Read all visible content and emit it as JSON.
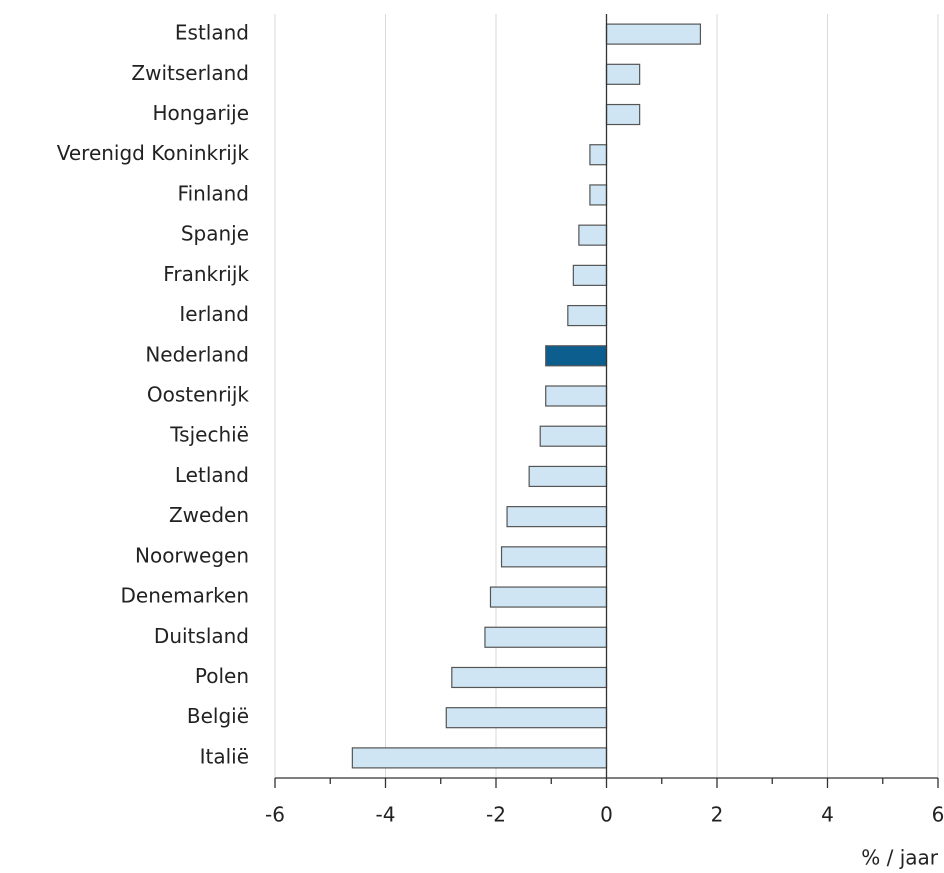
{
  "chart_data": {
    "type": "barh",
    "categories": [
      "Estland",
      "Zwitserland",
      "Hongarije",
      "Verenigd Koninkrijk",
      "Finland",
      "Spanje",
      "Frankrijk",
      "Ierland",
      "Nederland",
      "Oostenrijk",
      "Tsjechië",
      "Letland",
      "Zweden",
      "Noorwegen",
      "Denemarken",
      "Duitsland",
      "Polen",
      "België",
      "Italië"
    ],
    "values": [
      1.7,
      0.6,
      0.6,
      -0.3,
      -0.3,
      -0.5,
      -0.6,
      -0.7,
      -1.1,
      -1.1,
      -1.2,
      -1.4,
      -1.8,
      -1.9,
      -2.1,
      -2.2,
      -2.8,
      -2.9,
      -4.6
    ],
    "color": "#cfe5f4",
    "highlight": {
      "category": "Nederland",
      "color": "#0b5e8e"
    },
    "xlim": [
      -6,
      6
    ],
    "xticks": [
      -6,
      -4,
      -2,
      0,
      2,
      4,
      6
    ],
    "minor_xticks": [
      -5,
      -3,
      -1,
      1,
      3,
      5
    ],
    "xlabel": "% / jaar",
    "grid": true
  }
}
